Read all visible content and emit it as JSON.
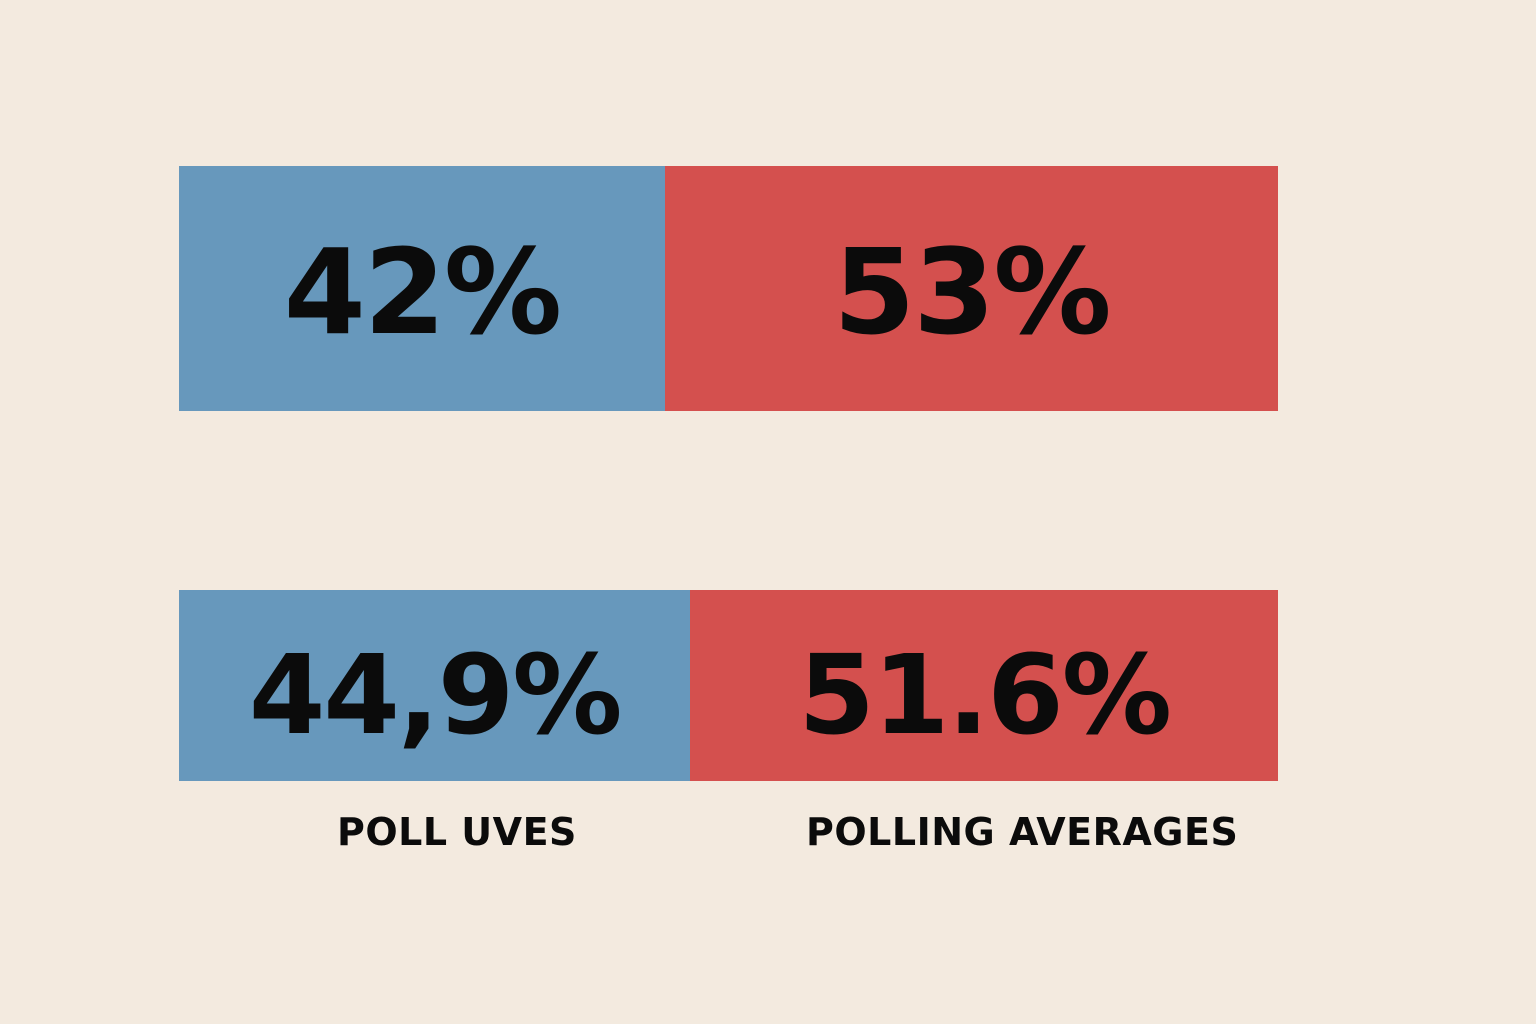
{
  "chart_data": {
    "type": "bar",
    "orientation": "horizontal-stacked",
    "rows": [
      {
        "segments": [
          {
            "value": 42,
            "label": "42%",
            "color": "#6798bc"
          },
          {
            "value": 53,
            "label": "53%",
            "color": "#d4504e"
          }
        ]
      },
      {
        "segments": [
          {
            "value": 44.9,
            "label": "44,9%",
            "color": "#6798bc"
          },
          {
            "value": 51.6,
            "label": "51.6%",
            "color": "#d4504e"
          }
        ]
      }
    ],
    "captions": [
      "POLL UVES",
      "POLLING AVERAGES"
    ],
    "background": "#f3eadf"
  }
}
